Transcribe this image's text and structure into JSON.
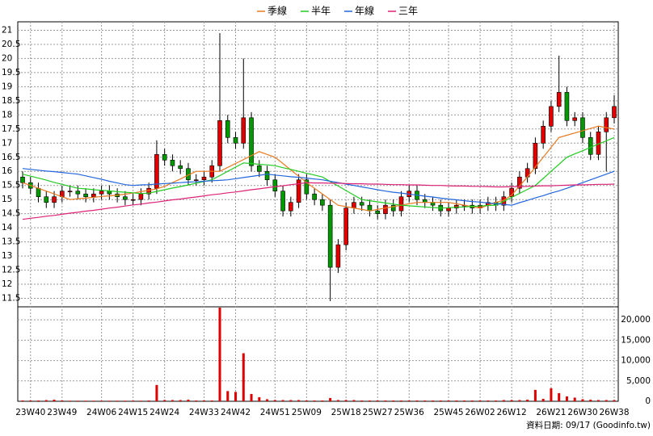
{
  "chart_data": {
    "type": "candlestick",
    "legend": [
      "季線",
      "半年",
      "年線",
      "三年"
    ],
    "source": "資料日期: 09/17  (Goodinfo.tw)",
    "up_color": "#e00000",
    "down_color": "#009900",
    "categories": [
      null,
      "23W40",
      null,
      null,
      null,
      "23W49",
      null,
      null,
      null,
      null,
      "24W06",
      null,
      null,
      null,
      "24W15",
      null,
      null,
      null,
      "24W24",
      null,
      null,
      null,
      null,
      "24W33",
      null,
      null,
      null,
      "24W42",
      null,
      null,
      null,
      null,
      "24W51",
      null,
      null,
      null,
      "25W09",
      null,
      null,
      null,
      null,
      "25W18",
      null,
      null,
      null,
      "25W27",
      null,
      null,
      null,
      "25W36",
      null,
      null,
      null,
      null,
      "25W45",
      null,
      null,
      null,
      "26W02",
      null,
      null,
      null,
      "26W12",
      null,
      null,
      null,
      null,
      "26W21",
      null,
      null,
      null,
      "26W30",
      null,
      null,
      null,
      "26W38"
    ],
    "open": [
      15.8,
      15.6,
      15.4,
      15.1,
      14.9,
      15.1,
      15.3,
      15.3,
      15.2,
      15.1,
      15.2,
      15.3,
      15.2,
      15.1,
      15.0,
      15.0,
      15.2,
      15.4,
      16.6,
      16.4,
      16.2,
      16.1,
      15.7,
      15.7,
      15.8,
      16.2,
      17.8,
      17.2,
      17.0,
      17.9,
      16.2,
      16.0,
      15.7,
      15.3,
      14.6,
      14.9,
      15.7,
      15.2,
      15.0,
      14.8,
      12.6,
      13.4,
      14.7,
      14.9,
      14.8,
      14.6,
      14.5,
      14.8,
      14.6,
      15.1,
      15.3,
      15.0,
      14.9,
      14.8,
      14.6,
      14.7,
      14.8,
      14.8,
      14.7,
      14.8,
      14.9,
      14.8,
      15.1,
      15.4,
      15.8,
      16.1,
      17.0,
      17.6,
      18.3,
      18.8,
      17.8,
      17.9,
      17.2,
      16.6,
      17.4,
      17.9
    ],
    "high": [
      16.0,
      15.8,
      15.6,
      15.3,
      15.3,
      15.5,
      15.5,
      15.5,
      15.4,
      15.4,
      15.5,
      15.5,
      15.4,
      15.3,
      15.2,
      15.4,
      15.6,
      17.1,
      16.8,
      16.6,
      16.4,
      16.3,
      15.9,
      16.0,
      16.4,
      20.9,
      18.0,
      17.4,
      20.0,
      18.1,
      16.4,
      16.2,
      15.9,
      15.5,
      15.1,
      15.9,
      15.9,
      15.4,
      15.2,
      15.0,
      13.6,
      14.9,
      15.1,
      15.1,
      15.0,
      14.8,
      15.0,
      15.0,
      15.3,
      15.5,
      15.5,
      15.2,
      15.1,
      15.0,
      14.9,
      15.0,
      15.0,
      15.0,
      15.0,
      15.1,
      15.1,
      15.3,
      15.6,
      16.0,
      16.3,
      17.2,
      17.8,
      18.5,
      20.1,
      19.0,
      18.1,
      18.1,
      17.4,
      17.6,
      18.1,
      18.7
    ],
    "low": [
      15.4,
      15.2,
      14.9,
      14.7,
      14.7,
      14.9,
      15.1,
      15.0,
      14.9,
      14.9,
      15.0,
      15.0,
      14.9,
      14.8,
      14.8,
      14.8,
      15.0,
      15.2,
      16.2,
      16.0,
      15.9,
      15.5,
      15.5,
      15.5,
      15.6,
      16.0,
      17.0,
      16.8,
      16.8,
      16.0,
      15.8,
      15.5,
      15.1,
      14.4,
      14.4,
      14.7,
      15.0,
      14.8,
      14.6,
      11.4,
      12.4,
      13.2,
      14.5,
      14.6,
      14.4,
      14.3,
      14.3,
      14.4,
      14.4,
      14.9,
      14.8,
      14.7,
      14.6,
      14.4,
      14.4,
      14.5,
      14.6,
      14.5,
      14.5,
      14.6,
      14.6,
      14.6,
      14.9,
      15.2,
      15.6,
      15.9,
      16.8,
      17.4,
      18.1,
      17.6,
      17.6,
      17.0,
      16.4,
      16.4,
      16.0,
      17.7
    ],
    "close": [
      15.6,
      15.4,
      15.1,
      14.9,
      15.1,
      15.3,
      15.3,
      15.2,
      15.1,
      15.2,
      15.3,
      15.2,
      15.1,
      15.0,
      15.0,
      15.2,
      15.4,
      16.6,
      16.4,
      16.2,
      16.1,
      15.7,
      15.7,
      15.8,
      16.2,
      17.8,
      17.2,
      17.0,
      17.9,
      16.2,
      16.0,
      15.7,
      15.3,
      14.6,
      14.9,
      15.7,
      15.2,
      15.0,
      14.8,
      12.6,
      13.4,
      14.7,
      14.9,
      14.8,
      14.6,
      14.5,
      14.8,
      14.6,
      15.1,
      15.3,
      15.0,
      14.9,
      14.8,
      14.6,
      14.7,
      14.8,
      14.8,
      14.7,
      14.8,
      14.9,
      14.8,
      15.1,
      15.4,
      15.8,
      16.1,
      17.0,
      17.6,
      18.3,
      18.8,
      17.8,
      17.9,
      17.2,
      16.6,
      17.4,
      17.9,
      18.3
    ],
    "ylim": [
      11.2,
      21.3
    ],
    "yticks": [
      11.5,
      12,
      12.5,
      13,
      13.5,
      14,
      14.5,
      15,
      15.5,
      16,
      16.5,
      17,
      17.5,
      18,
      18.5,
      19,
      19.5,
      20,
      20.5,
      21
    ],
    "moving_averages": [
      {
        "name": "季線",
        "color": "#e87a20",
        "values": [
          15.6,
          15.5,
          15.4,
          15.3,
          15.2,
          15.1,
          15.0,
          15.03,
          15.05,
          15.08,
          15.11,
          15.13,
          15.16,
          15.19,
          15.23,
          15.28,
          15.33,
          15.38,
          15.47,
          15.6,
          15.73,
          15.87,
          16.0,
          16.0,
          16.0,
          16.0,
          16.14,
          16.28,
          16.42,
          16.56,
          16.7,
          16.6,
          16.5,
          16.28,
          16.05,
          15.83,
          15.6,
          15.4,
          15.2,
          15.0,
          14.8,
          14.75,
          14.7,
          14.65,
          14.6,
          14.65,
          14.7,
          14.75,
          14.8,
          14.85,
          14.9,
          14.9,
          14.9,
          14.9,
          14.9,
          14.85,
          14.8,
          14.75,
          14.7,
          14.8,
          14.9,
          14.98,
          15.16,
          15.48,
          15.8,
          16.15,
          16.5,
          16.85,
          17.2,
          17.28,
          17.36,
          17.44,
          17.52,
          17.6,
          17.55,
          17.5
        ]
      },
      {
        "name": "半年",
        "color": "#22cc22",
        "values": [
          15.9,
          15.83,
          15.76,
          15.69,
          15.61,
          15.54,
          15.47,
          15.4,
          15.38,
          15.35,
          15.33,
          15.31,
          15.28,
          15.26,
          15.24,
          15.21,
          15.23,
          15.29,
          15.35,
          15.41,
          15.46,
          15.52,
          15.58,
          15.64,
          15.7,
          15.85,
          16.0,
          16.15,
          16.3,
          16.28,
          16.25,
          16.23,
          16.2,
          16.13,
          16.07,
          16.0,
          15.93,
          15.87,
          15.8,
          15.64,
          15.48,
          15.32,
          15.16,
          15.0,
          14.96,
          14.92,
          14.88,
          14.84,
          14.8,
          14.78,
          14.76,
          14.74,
          14.72,
          14.7,
          14.71,
          14.73,
          14.74,
          14.76,
          14.77,
          14.79,
          14.8,
          14.94,
          15.08,
          15.22,
          15.36,
          15.5,
          15.75,
          16.0,
          16.25,
          16.5,
          16.62,
          16.73,
          16.85,
          16.97,
          17.08,
          17.2
        ]
      },
      {
        "name": "年線",
        "color": "#2266dd",
        "values": [
          16.1,
          16.07,
          16.04,
          16.01,
          15.99,
          15.96,
          15.93,
          15.9,
          15.84,
          15.78,
          15.72,
          15.65,
          15.59,
          15.53,
          15.5,
          15.52,
          15.53,
          15.55,
          15.57,
          15.58,
          15.6,
          15.62,
          15.63,
          15.65,
          15.67,
          15.68,
          15.7,
          15.74,
          15.78,
          15.82,
          15.86,
          15.9,
          15.87,
          15.84,
          15.81,
          15.79,
          15.76,
          15.73,
          15.7,
          15.65,
          15.6,
          15.55,
          15.5,
          15.45,
          15.4,
          15.35,
          15.3,
          15.26,
          15.23,
          15.19,
          15.16,
          15.12,
          15.09,
          15.05,
          15.02,
          14.99,
          14.96,
          14.93,
          14.91,
          14.88,
          14.85,
          14.83,
          14.8,
          14.89,
          14.97,
          15.06,
          15.14,
          15.23,
          15.31,
          15.4,
          15.5,
          15.6,
          15.7,
          15.8,
          15.9,
          16.0
        ]
      },
      {
        "name": "三年",
        "color": "#dd2277",
        "values": [
          14.3,
          14.34,
          14.37,
          14.41,
          14.44,
          14.48,
          14.52,
          14.55,
          14.59,
          14.62,
          14.66,
          14.7,
          14.73,
          14.77,
          14.81,
          14.84,
          14.88,
          14.91,
          14.95,
          14.99,
          15.02,
          15.06,
          15.09,
          15.13,
          15.17,
          15.2,
          15.24,
          15.27,
          15.31,
          15.35,
          15.38,
          15.42,
          15.46,
          15.49,
          15.53,
          15.56,
          15.6,
          15.59,
          15.59,
          15.58,
          15.58,
          15.57,
          15.56,
          15.56,
          15.55,
          15.55,
          15.54,
          15.53,
          15.53,
          15.52,
          15.52,
          15.51,
          15.5,
          15.5,
          15.49,
          15.48,
          15.48,
          15.47,
          15.47,
          15.46,
          15.45,
          15.45,
          15.46,
          15.46,
          15.47,
          15.48,
          15.49,
          15.49,
          15.5,
          15.51,
          15.52,
          15.52,
          15.53,
          15.54,
          15.54,
          15.55
        ]
      }
    ],
    "volume": {
      "color": "#e00000",
      "values": [
        200,
        200,
        200,
        300,
        400,
        200,
        150,
        150,
        150,
        150,
        150,
        150,
        150,
        150,
        150,
        150,
        200,
        4000,
        300,
        300,
        300,
        400,
        200,
        200,
        200,
        23000,
        2500,
        2300,
        11800,
        1800,
        1000,
        500,
        300,
        300,
        300,
        300,
        200,
        200,
        200,
        800,
        300,
        300,
        300,
        200,
        200,
        200,
        200,
        200,
        200,
        200,
        200,
        200,
        200,
        200,
        200,
        200,
        200,
        200,
        200,
        200,
        200,
        300,
        300,
        300,
        400,
        2800,
        600,
        3200,
        2000,
        1200,
        900,
        500,
        400,
        300,
        300,
        300
      ],
      "ylim": [
        0,
        23200
      ],
      "yticks": [
        0,
        {
          "value": 5000,
          "label": "5,000"
        },
        {
          "value": 10000,
          "label": "10,000"
        },
        {
          "value": 15000,
          "label": "15,000"
        },
        {
          "value": 20000,
          "label": "20,000"
        }
      ]
    }
  }
}
